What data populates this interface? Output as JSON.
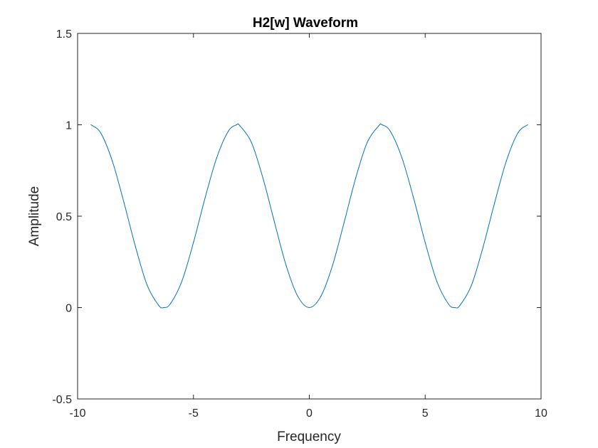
{
  "chart_data": {
    "type": "line",
    "title": "H2[w] Waveform",
    "xlabel": "Frequency",
    "ylabel": "Amplitude",
    "xlim": [
      -10,
      10
    ],
    "ylim": [
      -0.5,
      1.5
    ],
    "xticks": [
      "-10",
      "-5",
      "0",
      "5",
      "10"
    ],
    "yticks": [
      "-0.5",
      "0",
      "0.5",
      "1",
      "1.5"
    ],
    "grid": false,
    "box": true,
    "line_color": "#0072BD",
    "series": [
      {
        "x": [
          -9.42,
          -9.0,
          -8.5,
          -8.0,
          -7.5,
          -7.0,
          -6.5,
          -6.28,
          -6.0,
          -5.5,
          -5.0,
          -4.5,
          -4.0,
          -3.5,
          -3.14,
          -3.0,
          -2.5,
          -2.0,
          -1.5,
          -1.0,
          -0.5,
          0.0,
          0.5,
          1.0,
          1.5,
          2.0,
          2.5,
          3.0,
          3.14,
          3.5,
          4.0,
          4.5,
          5.0,
          5.5,
          6.0,
          6.28,
          6.5,
          7.0,
          7.5,
          8.0,
          8.5,
          9.0,
          9.42
        ],
        "y": [
          1.0,
          0.955,
          0.801,
          0.575,
          0.332,
          0.123,
          0.012,
          0.0,
          0.02,
          0.144,
          0.356,
          0.599,
          0.818,
          0.964,
          1.0,
          0.995,
          0.904,
          0.708,
          0.465,
          0.23,
          0.062,
          0.0,
          0.062,
          0.23,
          0.465,
          0.708,
          0.904,
          0.995,
          1.0,
          0.964,
          0.818,
          0.599,
          0.356,
          0.144,
          0.02,
          0.0,
          0.012,
          0.123,
          0.332,
          0.575,
          0.801,
          0.955,
          1.0
        ]
      }
    ]
  }
}
